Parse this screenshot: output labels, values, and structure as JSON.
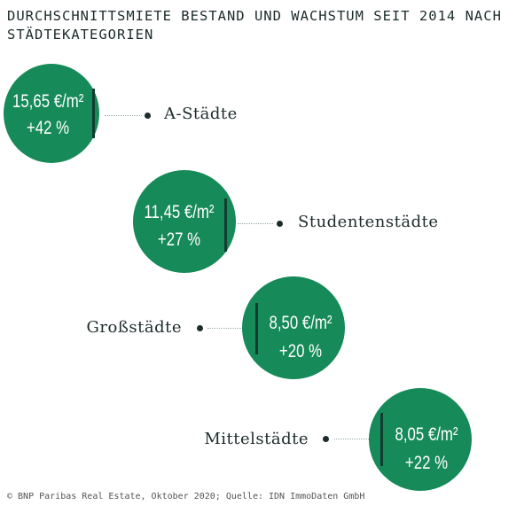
{
  "title": "DURCHSCHNITTSMIETE BESTAND UND WACHSTUM SEIT 2014 NACH STÄDTEKATEGORIEN",
  "accent_color": "#168a58",
  "items": [
    {
      "category": "A-Städte",
      "rent": "15,65 €/m²",
      "growth": "+42 %"
    },
    {
      "category": "Studentenstädte",
      "rent": "11,45 €/m²",
      "growth": "+27 %"
    },
    {
      "category": "Großstädte",
      "rent": "8,50 €/m²",
      "growth": "+20 %"
    },
    {
      "category": "Mittelstädte",
      "rent": "8,05 €/m²",
      "growth": "+22 %"
    }
  ],
  "footer": "© BNP Paribas Real Estate, Oktober 2020; Quelle: IDN ImmoDaten GmbH"
}
